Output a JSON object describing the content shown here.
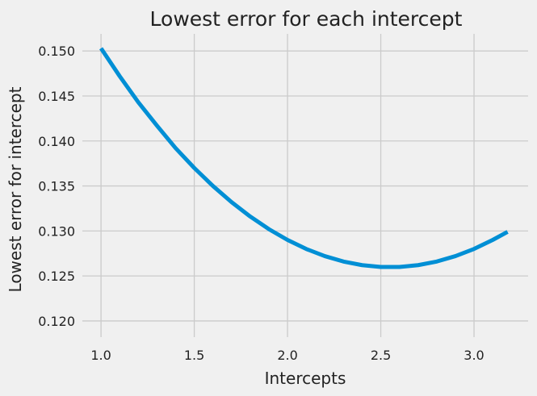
{
  "chart_data": {
    "type": "line",
    "title": "Lowest error for each intercept",
    "xlabel": "Intercepts",
    "ylabel": "Lowest error for intercept",
    "xlim": [
      0.9,
      3.29
    ],
    "ylim": [
      0.1182,
      0.1519
    ],
    "xticks": [
      1.0,
      1.5,
      2.0,
      2.5,
      3.0
    ],
    "xtick_labels": [
      "1.0",
      "1.5",
      "2.0",
      "2.5",
      "3.0"
    ],
    "yticks": [
      0.12,
      0.125,
      0.13,
      0.135,
      0.14,
      0.145,
      0.15
    ],
    "ytick_labels": [
      "0.120",
      "0.125",
      "0.130",
      "0.135",
      "0.140",
      "0.145",
      "0.150"
    ],
    "grid": true,
    "series": [
      {
        "color": "#008fd5",
        "x": [
          1.0,
          1.1,
          1.2,
          1.3,
          1.4,
          1.5,
          1.6,
          1.7,
          1.8,
          1.9,
          2.0,
          2.1,
          2.2,
          2.3,
          2.4,
          2.5,
          2.6,
          2.7,
          2.8,
          2.9,
          3.0,
          3.1,
          3.18
        ],
        "y": [
          0.1503,
          0.1472,
          0.1443,
          0.1417,
          0.1392,
          0.137,
          0.135,
          0.1332,
          0.1316,
          0.1302,
          0.129,
          0.128,
          0.1272,
          0.1266,
          0.1262,
          0.126,
          0.126,
          0.1262,
          0.1266,
          0.1272,
          0.128,
          0.129,
          0.1299
        ]
      }
    ]
  },
  "colors": {
    "background": "#f0f0f0",
    "grid": "#cbcbcb",
    "line": "#008fd5",
    "text": "#222222"
  }
}
